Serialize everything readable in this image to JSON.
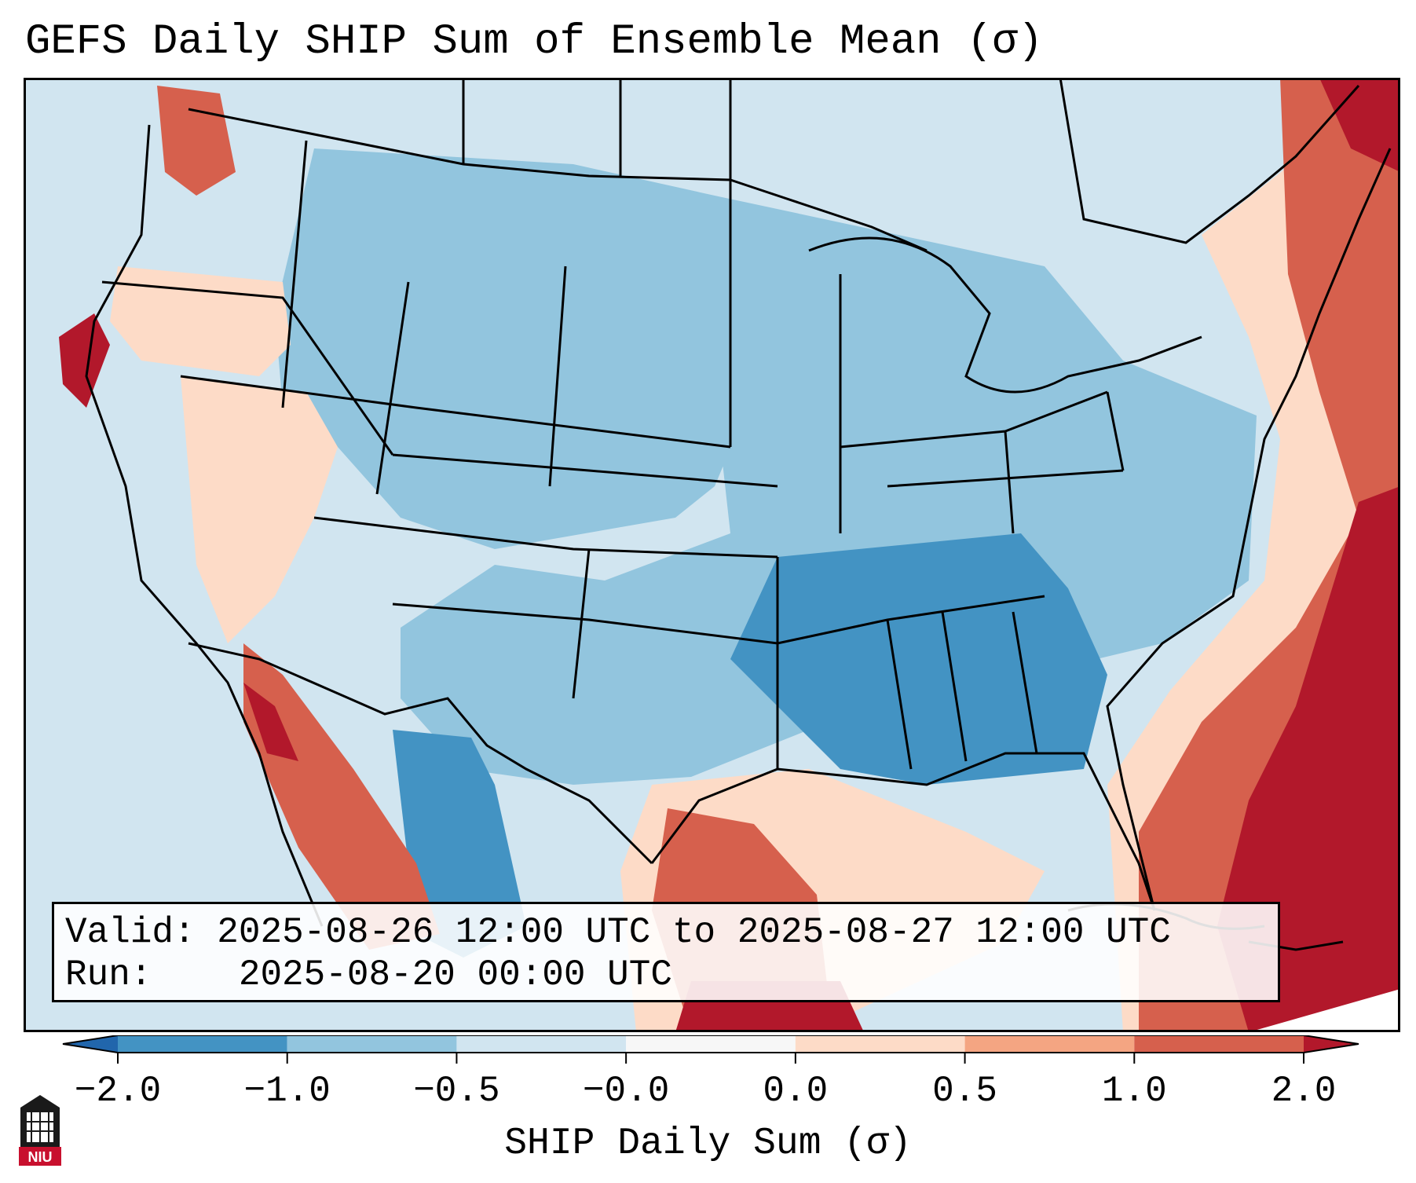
{
  "title": "GEFS Daily SHIP Sum of Ensemble Mean (σ)",
  "info": {
    "valid_label": "Valid:",
    "valid_value": "2025-08-26 12:00 UTC to 2025-08-27 12:00 UTC",
    "run_label": "Run:",
    "run_value": "2025-08-20 00:00 UTC"
  },
  "colorbar": {
    "label": "SHIP Daily Sum (σ)",
    "ticks": [
      "−2.0",
      "−1.0",
      "−0.5",
      "−0.0",
      "0.0",
      "0.5",
      "1.0",
      "2.0"
    ],
    "colors": [
      "#2166ac",
      "#4393c3",
      "#92c5de",
      "#d1e5f0",
      "#f7f7f7",
      "#fddbc7",
      "#f4a582",
      "#d6604d",
      "#b2182b"
    ],
    "extend": "both"
  },
  "map": {
    "ocean_background": "#d1e5f0",
    "regions": [
      {
        "name": "pacific-coast-red",
        "color": "#b2182b"
      },
      {
        "name": "gulf-warm",
        "color": "#d6604d"
      },
      {
        "name": "southeast-blue",
        "color": "#4393c3"
      },
      {
        "name": "atlantic-warm",
        "color": "#b2182b"
      }
    ]
  },
  "logo": {
    "text": "NIU"
  }
}
